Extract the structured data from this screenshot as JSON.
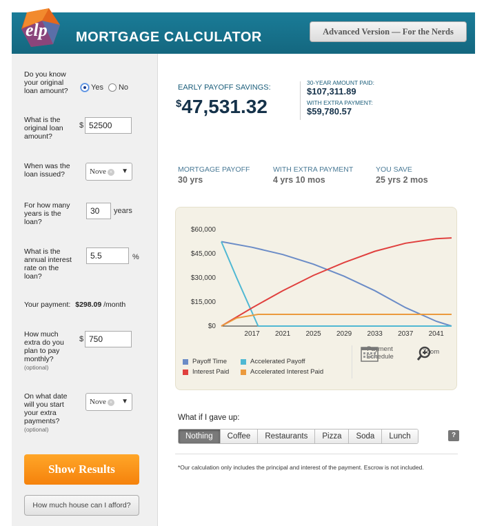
{
  "header": {
    "logo_text": "elp",
    "title": "MORTGAGE CALCULATOR",
    "advanced_button": "Advanced Version — For the Nerds",
    "colors": {
      "bar": "#1a7c98",
      "accent": "#f5820c"
    }
  },
  "sidebar": {
    "q_known": "Do you know your original loan amount?",
    "radio_yes": "Yes",
    "radio_no": "No",
    "q_amount": "What is the original loan amount?",
    "amount_prefix": "$",
    "amount_value": "52500",
    "q_issued": "When was the loan issued?",
    "issued_value": "Nove",
    "q_years": "For how many years is the loan?",
    "years_value": "30",
    "years_suffix": "years",
    "q_rate": "What is the annual interest rate on the loan?",
    "rate_value": "5.5",
    "rate_suffix": "%",
    "payment_label": "Your payment:",
    "payment_value": "$298.09",
    "payment_unit": "/month",
    "q_extra": "How much extra do you plan to pay monthly?",
    "optional": "(optional)",
    "extra_prefix": "$",
    "extra_value": "750",
    "q_start": "On what date will you start your extra payments?",
    "start_value": "Nove",
    "show_results": "Show Results",
    "afford": "How much house can I afford?"
  },
  "summary": {
    "savings_label": "EARLY PAYOFF SAVINGS:",
    "savings_dollar": "$",
    "savings_value": "47,531.32",
    "thirty_label": "30-YEAR AMOUNT PAID:",
    "thirty_value": "$107,311.89",
    "extra_label": "WITH EXTRA PAYMENT:",
    "extra_value": "$59,780.57",
    "payoff_label": "MORTGAGE PAYOFF",
    "payoff_value": "30 yrs",
    "with_extra_label": "WITH EXTRA PAYMENT",
    "with_extra_value": "4 yrs 10 mos",
    "save_label": "YOU SAVE",
    "save_value": "25 yrs 2 mos"
  },
  "chart_data": {
    "type": "line",
    "x_start": 2013,
    "x_end": 2043,
    "xticks": [
      "2017",
      "2021",
      "2025",
      "2029",
      "2033",
      "2037",
      "2041"
    ],
    "yticks": [
      "$0",
      "$15,000",
      "$30,000",
      "$45,000",
      "$60,000"
    ],
    "ylim": [
      0,
      63000
    ],
    "series": [
      {
        "name": "Payoff Time",
        "color": "#6b8cc7",
        "x": [
          2013,
          2017,
          2021,
          2025,
          2029,
          2033,
          2037,
          2041,
          2043
        ],
        "y": [
          52500,
          49000,
          44500,
          38500,
          31000,
          22000,
          11500,
          3000,
          0
        ]
      },
      {
        "name": "Accelerated Payoff",
        "color": "#4fb8d3",
        "x": [
          2013,
          2015,
          2017.8,
          2043
        ],
        "y": [
          52500,
          30000,
          0,
          0
        ]
      },
      {
        "name": "Interest Paid",
        "color": "#e0403e",
        "x": [
          2013,
          2017,
          2021,
          2025,
          2029,
          2033,
          2037,
          2041,
          2043
        ],
        "y": [
          0,
          11300,
          22000,
          31500,
          39500,
          46500,
          51500,
          54300,
          54800
        ]
      },
      {
        "name": "Accelerated Interest Paid",
        "color": "#eb9a3d",
        "x": [
          2013,
          2015,
          2017.8,
          2043
        ],
        "y": [
          0,
          5000,
          7300,
          7300
        ]
      }
    ]
  },
  "tools": {
    "schedule": "Payment Schedule",
    "zoom": "Zoom"
  },
  "gaveup": {
    "label": "What if I gave up:",
    "tabs": [
      "Nothing",
      "Coffee",
      "Restaurants",
      "Pizza",
      "Soda",
      "Lunch"
    ],
    "help": "?"
  },
  "footnote": "*Our calculation only includes the principal and interest of the payment. Escrow is not included."
}
